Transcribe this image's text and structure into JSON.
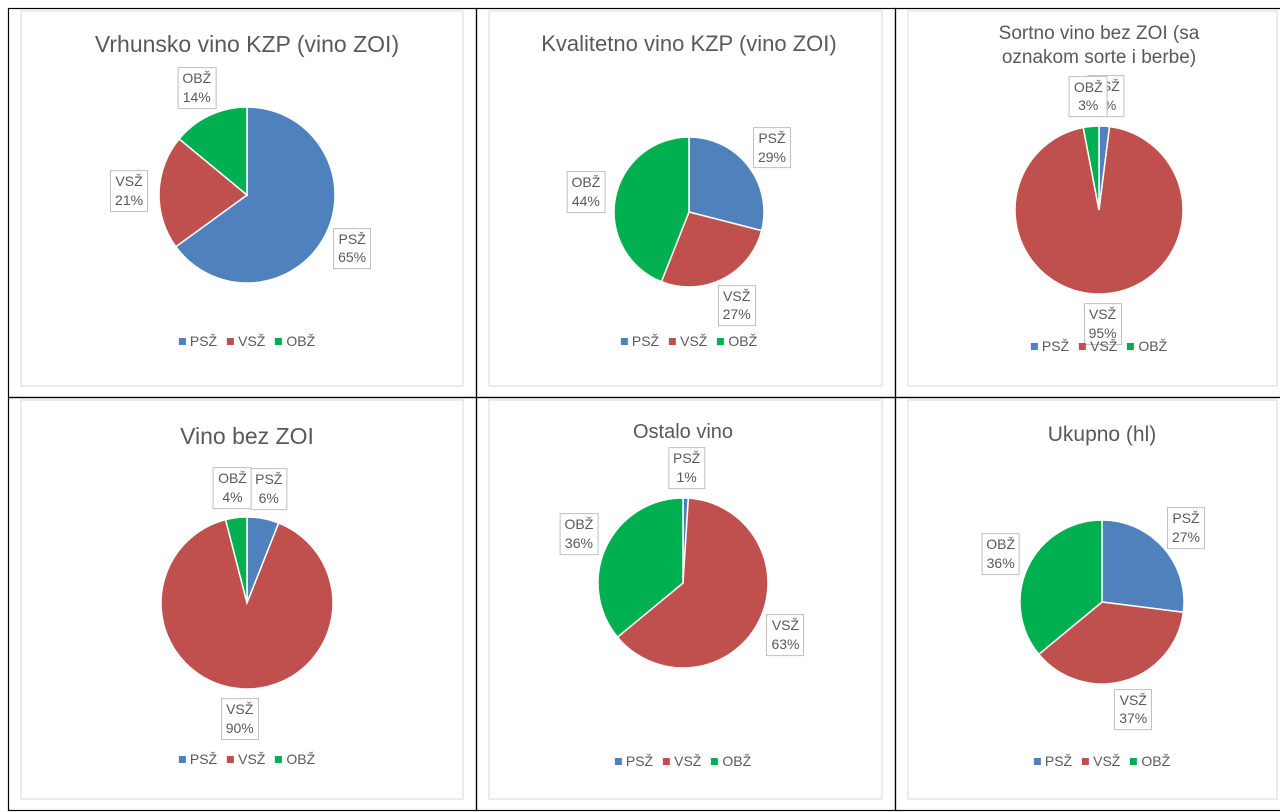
{
  "chart_data": [
    {
      "type": "pie",
      "title": "Vrhunsko vino KZP (vino ZOI)",
      "categories": [
        "PSŽ",
        "VSŽ",
        "OBŽ"
      ],
      "values": [
        65,
        21,
        14
      ],
      "value_labels": [
        "65%",
        "21%",
        "14%"
      ],
      "colors": [
        "#4f81bd",
        "#c0504d",
        "#00b050"
      ],
      "legend": "bottom"
    },
    {
      "type": "pie",
      "title": "Kvalitetno vino KZP (vino ZOI)",
      "categories": [
        "PSŽ",
        "VSŽ",
        "OBŽ"
      ],
      "values": [
        29,
        27,
        44
      ],
      "value_labels": [
        "29%",
        "27%",
        "44%"
      ],
      "colors": [
        "#4f81bd",
        "#c0504d",
        "#00b050"
      ],
      "legend": "bottom"
    },
    {
      "type": "pie",
      "title": "Sortno vino bez ZOI (sa oznakom sorte i berbe)",
      "categories": [
        "PSŽ",
        "VSŽ",
        "OBŽ"
      ],
      "values": [
        2,
        95,
        3
      ],
      "value_labels": [
        "2%",
        "95%",
        "3%"
      ],
      "colors": [
        "#4f81bd",
        "#c0504d",
        "#00b050"
      ],
      "legend": "bottom"
    },
    {
      "type": "pie",
      "title": "Vino bez ZOI",
      "categories": [
        "PSŽ",
        "VSŽ",
        "OBŽ"
      ],
      "values": [
        6,
        90,
        4
      ],
      "value_labels": [
        "6%",
        "90%",
        "4%"
      ],
      "colors": [
        "#4f81bd",
        "#c0504d",
        "#00b050"
      ],
      "legend": "bottom"
    },
    {
      "type": "pie",
      "title": "Ostalo vino",
      "categories": [
        "PSŽ",
        "VSŽ",
        "OBŽ"
      ],
      "values": [
        1,
        63,
        36
      ],
      "value_labels": [
        "1%",
        "63%",
        "36%"
      ],
      "colors": [
        "#4f81bd",
        "#c0504d",
        "#00b050"
      ],
      "legend": "bottom"
    },
    {
      "type": "pie",
      "title": "Ukupno (hl)",
      "categories": [
        "PSŽ",
        "VSŽ",
        "OBŽ"
      ],
      "values": [
        27,
        37,
        36
      ],
      "value_labels": [
        "27%",
        "37%",
        "36%"
      ],
      "colors": [
        "#4f81bd",
        "#c0504d",
        "#00b050"
      ],
      "legend": "bottom"
    }
  ]
}
